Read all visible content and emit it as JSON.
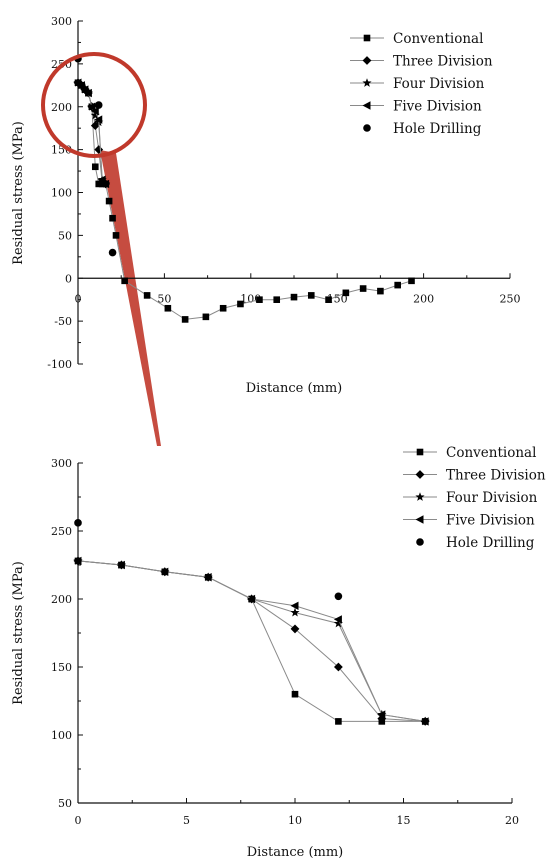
{
  "chart_data": [
    {
      "type": "line",
      "title": "",
      "xlabel": "Distance (mm)",
      "ylabel": "Residual stress (MPa)",
      "xlim": [
        0,
        250
      ],
      "ylim": [
        -100,
        300
      ],
      "xticks": [
        0,
        50,
        100,
        150,
        200,
        250
      ],
      "yticks": [
        -100,
        -50,
        0,
        50,
        100,
        150,
        200,
        250,
        300
      ],
      "grid": false,
      "legend": "top-right",
      "annotation": "red circle highlighting the 0-20 mm region, magnified in the lower chart",
      "series": [
        {
          "name": "Conventional",
          "marker": "square",
          "x": [
            0,
            2,
            4,
            6,
            8,
            10,
            12,
            14,
            16,
            18,
            20,
            22,
            27,
            40,
            52,
            62,
            74,
            84,
            94,
            105,
            115,
            125,
            135,
            145,
            155,
            165,
            175,
            185,
            193
          ],
          "y": [
            228,
            225,
            220,
            216,
            200,
            130,
            110,
            110,
            110,
            90,
            70,
            50,
            -3,
            -20,
            -35,
            -48,
            -45,
            -35,
            -30,
            -25,
            -25,
            -22,
            -20,
            -25,
            -17,
            -12,
            -15,
            -8,
            -3
          ]
        },
        {
          "name": "Three Division",
          "marker": "diamond",
          "x": [
            0,
            2,
            4,
            6,
            8,
            10,
            12,
            14,
            16
          ],
          "y": [
            228,
            225,
            220,
            216,
            200,
            178,
            150,
            112,
            110
          ]
        },
        {
          "name": "Four Division",
          "marker": "star",
          "x": [
            0,
            2,
            4,
            6,
            8,
            10,
            12,
            14,
            16
          ],
          "y": [
            228,
            225,
            220,
            216,
            200,
            190,
            182,
            115,
            110
          ]
        },
        {
          "name": "Five Division",
          "marker": "triangle-left",
          "x": [
            0,
            2,
            4,
            6,
            8,
            10,
            12,
            14,
            16
          ],
          "y": [
            228,
            225,
            220,
            216,
            200,
            195,
            185,
            115,
            110
          ]
        },
        {
          "name": "Hole Drilling",
          "marker": "circle",
          "line": false,
          "x": [
            0,
            12,
            20
          ],
          "y": [
            256,
            202,
            30
          ]
        }
      ]
    },
    {
      "type": "line",
      "title": "",
      "xlabel": "Distance (mm)",
      "ylabel": "Residual stress (MPa)",
      "xlim": [
        0,
        20
      ],
      "ylim": [
        50,
        300
      ],
      "xticks": [
        0,
        5,
        10,
        15,
        20
      ],
      "yticks": [
        50,
        100,
        150,
        200,
        250,
        300
      ],
      "grid": false,
      "legend": "top-right",
      "series": [
        {
          "name": "Conventional",
          "marker": "square",
          "x": [
            0,
            2,
            4,
            6,
            8,
            10,
            12,
            14,
            16
          ],
          "y": [
            228,
            225,
            220,
            216,
            200,
            130,
            110,
            110,
            110
          ]
        },
        {
          "name": "Three Division",
          "marker": "diamond",
          "x": [
            0,
            2,
            4,
            6,
            8,
            10,
            12,
            14,
            16
          ],
          "y": [
            228,
            225,
            220,
            216,
            200,
            178,
            150,
            112,
            110
          ]
        },
        {
          "name": "Four Division",
          "marker": "star",
          "x": [
            0,
            2,
            4,
            6,
            8,
            10,
            12,
            14,
            16
          ],
          "y": [
            228,
            225,
            220,
            216,
            200,
            190,
            182,
            115,
            110
          ]
        },
        {
          "name": "Five Division",
          "marker": "triangle-left",
          "x": [
            0,
            2,
            4,
            6,
            8,
            10,
            12,
            14,
            16
          ],
          "y": [
            228,
            225,
            220,
            216,
            200,
            195,
            185,
            115,
            110
          ]
        },
        {
          "name": "Hole Drilling",
          "marker": "circle",
          "line": false,
          "x": [
            0,
            12
          ],
          "y": [
            256,
            202
          ]
        }
      ]
    }
  ],
  "colors": {
    "axis": "#111111",
    "series_line": "#8a8a8a",
    "marker": "#000000",
    "highlight": "#c0392b"
  }
}
